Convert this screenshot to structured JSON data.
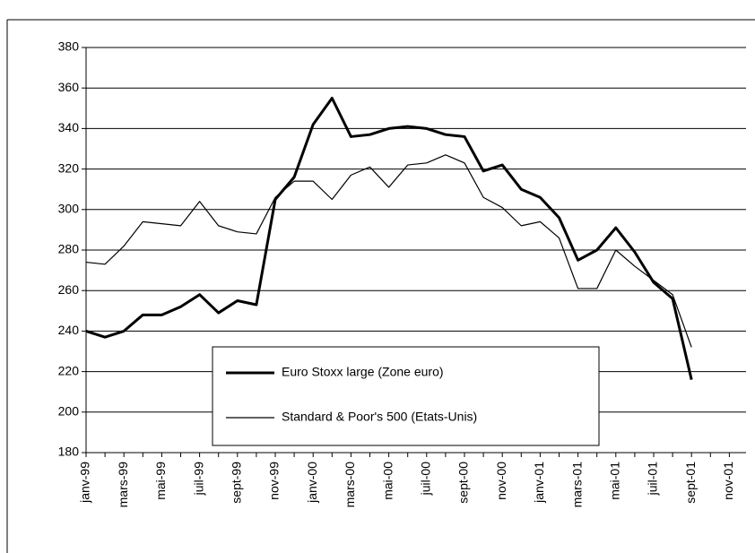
{
  "chart_data": {
    "type": "line",
    "categories": [
      "janv-99",
      null,
      "mars-99",
      null,
      "mai-99",
      null,
      "juil-99",
      null,
      "sept-99",
      null,
      "nov-99",
      null,
      "janv-00",
      null,
      "mars-00",
      null,
      "mai-00",
      null,
      "juil-00",
      null,
      "sept-00",
      null,
      "nov-00",
      null,
      "janv-01",
      null,
      "mars-01",
      null,
      "mai-01",
      null,
      "juil-01",
      null,
      "sept-01",
      null,
      "nov-01"
    ],
    "series": [
      {
        "name": "Euro Stoxx large (Zone euro)",
        "color": "#000000",
        "values": [
          240,
          237,
          240,
          248,
          248,
          252,
          258,
          249,
          255,
          253,
          305,
          316,
          342,
          355,
          336,
          337,
          340,
          341,
          340,
          337,
          336,
          319,
          322,
          310,
          306,
          296,
          275,
          280,
          291,
          279,
          264,
          256,
          216,
          null,
          null
        ]
      },
      {
        "name": "Standard & Poor's 500 (Etats-Unis)",
        "color": "#000000",
        "values": [
          274,
          273,
          282,
          294,
          293,
          292,
          304,
          292,
          289,
          288,
          306,
          314,
          314,
          305,
          317,
          321,
          311,
          322,
          323,
          327,
          323,
          306,
          301,
          292,
          294,
          286,
          261,
          261,
          280,
          272,
          265,
          258,
          232,
          null,
          null
        ]
      }
    ],
    "ylim": [
      180,
      380
    ],
    "yticks": [
      180,
      200,
      220,
      240,
      260,
      280,
      300,
      320,
      340,
      360,
      380
    ],
    "grid": true
  }
}
